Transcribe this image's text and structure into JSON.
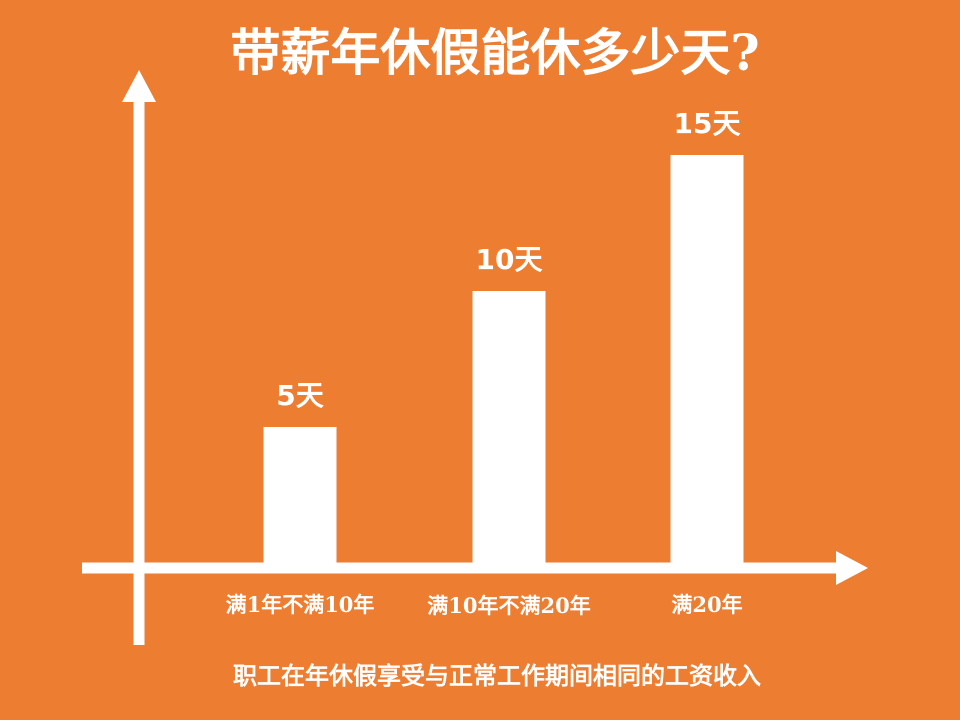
{
  "colors": {
    "background": "#ED7D31",
    "foreground": "#FFFFFF"
  },
  "chart_data": {
    "type": "bar",
    "title": "带薪年休假能休多少天?",
    "categories": [
      "满1年不满10年",
      "满10年不满20年",
      "满20年"
    ],
    "values": [
      5,
      10,
      15
    ],
    "data_labels": [
      "5天",
      "10天",
      "15天"
    ],
    "xlabel": "",
    "ylabel": "",
    "ylim": [
      0,
      20
    ],
    "grid": false,
    "legend": "none"
  },
  "footer": {
    "text": "职工在年休假享受与正常工作期间相同的工资收入"
  }
}
